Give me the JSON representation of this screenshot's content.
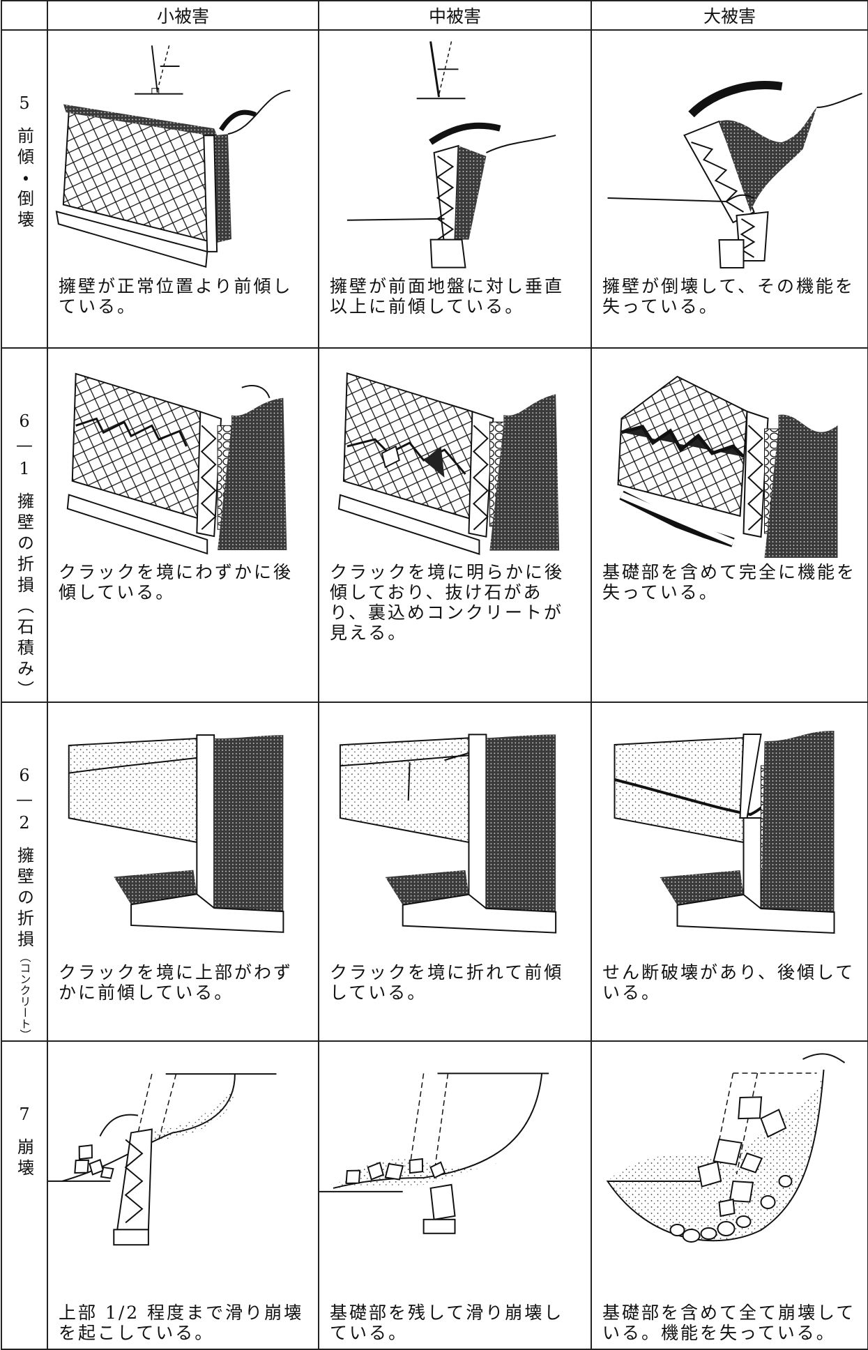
{
  "header": {
    "columns": [
      "小被害",
      "中被害",
      "大被害"
    ]
  },
  "rows": [
    {
      "number": "5",
      "label": "前傾・倒壊",
      "cells": [
        "擁壁が正常位置より前傾している。",
        "擁壁が前面地盤に対し垂直以上に前傾している。",
        "擁壁が倒壊して、その機能を失っている。"
      ]
    },
    {
      "number": "6—1",
      "label": "擁壁の折損",
      "note": "（石積み）",
      "cells": [
        "クラックを境にわずかに後傾している。",
        "クラックを境に明らかに後傾しており、抜け石があり、裏込めコンクリートが見える。",
        "基礎部を含めて完全に機能を失っている。"
      ]
    },
    {
      "number": "6—2",
      "label": "擁壁の折損",
      "note": "（コンクリート）",
      "cells": [
        "クラックを境に上部がわずかに前傾している。",
        "クラックを境に折れて前傾している。",
        "せん断破壊があり、後傾している。"
      ]
    },
    {
      "number": "7",
      "label": "崩壊",
      "cells": [
        "上部 1/2 程度まで滑り崩壊を起こしている。",
        "基礎部を残して滑り崩壊している。",
        "基礎部を含めて全て崩壊している。機能を失っている。"
      ]
    }
  ]
}
